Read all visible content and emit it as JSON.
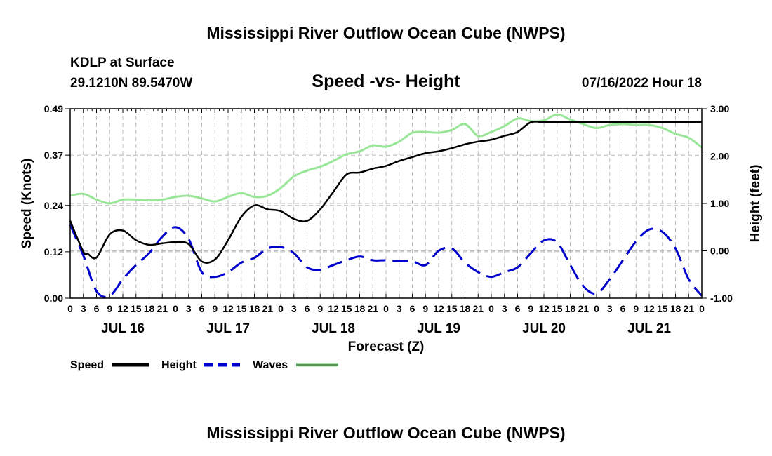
{
  "header": {
    "title": "Mississippi River Outflow Ocean Cube (NWPS)",
    "station": "KDLP at Surface",
    "coords": "29.1210N  89.5470W",
    "subtitle": "Speed -vs- Height",
    "date": "07/16/2022 Hour 18"
  },
  "footer": {
    "title": "Mississippi River Outflow Ocean Cube (NWPS)"
  },
  "chart_data": {
    "type": "line",
    "title": "Speed -vs- Height",
    "xlabel": "Forecast (Z)",
    "ylabel_left": "Speed (Knots)",
    "ylabel_right": "Height (feet)",
    "ylim_left": [
      0,
      0.49
    ],
    "ylim_right": [
      -1.0,
      3.0
    ],
    "yticks_left": [
      "0.49",
      "0.37",
      "0.24",
      "0.12",
      "0.00"
    ],
    "yticks_left_values": [
      0.49,
      0.37,
      0.24,
      0.12,
      0.0
    ],
    "yticks_right": [
      "3.00",
      "2.00",
      "1.00",
      "0.00",
      "-1.00"
    ],
    "yticks_right_values": [
      3.0,
      2.0,
      1.0,
      0.0,
      -1.0
    ],
    "x_range_hours": [
      0,
      144
    ],
    "x_tick_step_hours": 3,
    "x_tick_labels": [
      "0",
      "3",
      "6",
      "9",
      "12",
      "15",
      "18",
      "21",
      "0",
      "3",
      "6",
      "9",
      "12",
      "15",
      "18",
      "21",
      "0",
      "3",
      "6",
      "9",
      "12",
      "15",
      "18",
      "21",
      "0",
      "3",
      "6",
      "9",
      "12",
      "15",
      "18",
      "21",
      "0",
      "3",
      "6",
      "9",
      "12",
      "15",
      "18",
      "21",
      "0",
      "3",
      "6",
      "9",
      "12",
      "15",
      "18",
      "21",
      "0"
    ],
    "day_labels": [
      "JUL 16",
      "JUL 17",
      "JUL 18",
      "JUL 19",
      "JUL 20",
      "JUL 21"
    ],
    "day_label_hours": [
      12,
      36,
      60,
      84,
      108,
      132
    ],
    "grid": true,
    "legend": [
      "Speed",
      "Height",
      "Waves"
    ],
    "series": [
      {
        "name": "Speed",
        "axis": "left",
        "color": "#000000",
        "dash": "solid",
        "x": [
          0,
          3,
          4,
          6,
          9,
          12,
          15,
          18,
          21,
          24,
          27,
          30,
          33,
          36,
          39,
          42,
          45,
          48,
          51,
          54,
          57,
          60,
          63,
          66,
          69,
          72,
          75,
          78,
          81,
          84,
          87,
          90,
          93,
          96,
          99,
          102,
          105,
          108,
          110,
          144
        ],
        "values": [
          0.2,
          0.12,
          0.115,
          0.105,
          0.165,
          0.175,
          0.15,
          0.138,
          0.142,
          0.145,
          0.14,
          0.095,
          0.1,
          0.15,
          0.21,
          0.24,
          0.23,
          0.225,
          0.205,
          0.2,
          0.23,
          0.275,
          0.32,
          0.325,
          0.335,
          0.342,
          0.355,
          0.365,
          0.375,
          0.38,
          0.388,
          0.398,
          0.405,
          0.41,
          0.42,
          0.43,
          0.455,
          0.455,
          0.455,
          0.455
        ]
      },
      {
        "name": "Height",
        "axis": "right",
        "color": "#0000cc",
        "dash": "dashed",
        "x": [
          0,
          3,
          6,
          9,
          12,
          15,
          18,
          21,
          24,
          27,
          30,
          33,
          36,
          39,
          42,
          45,
          48,
          51,
          54,
          57,
          60,
          63,
          66,
          69,
          72,
          75,
          78,
          81,
          84,
          87,
          90,
          93,
          96,
          99,
          102,
          105,
          108,
          111,
          114,
          117,
          120,
          123,
          126,
          129,
          132,
          135,
          138,
          141,
          144
        ],
        "values": [
          0.55,
          -0.1,
          -0.85,
          -0.95,
          -0.6,
          -0.3,
          -0.05,
          0.3,
          0.5,
          0.25,
          -0.45,
          -0.55,
          -0.45,
          -0.25,
          -0.15,
          0.05,
          0.08,
          -0.05,
          -0.35,
          -0.4,
          -0.3,
          -0.2,
          -0.12,
          -0.2,
          -0.2,
          -0.22,
          -0.22,
          -0.3,
          0.0,
          0.05,
          -0.25,
          -0.45,
          -0.55,
          -0.45,
          -0.35,
          -0.05,
          0.22,
          0.18,
          -0.3,
          -0.75,
          -0.9,
          -0.6,
          -0.2,
          0.2,
          0.45,
          0.4,
          0.05,
          -0.6,
          -0.95
        ]
      },
      {
        "name": "Waves",
        "axis": "left",
        "color": "#99e699",
        "dash": "solid",
        "x": [
          0,
          3,
          6,
          9,
          12,
          15,
          18,
          21,
          24,
          27,
          30,
          33,
          36,
          39,
          42,
          45,
          48,
          51,
          54,
          57,
          60,
          63,
          66,
          69,
          72,
          75,
          78,
          81,
          84,
          87,
          90,
          93,
          96,
          99,
          102,
          105,
          108,
          111,
          114,
          117,
          120,
          123,
          126,
          129,
          132,
          135,
          138,
          141,
          144
        ],
        "values": [
          0.265,
          0.27,
          0.255,
          0.245,
          0.255,
          0.255,
          0.253,
          0.255,
          0.262,
          0.265,
          0.258,
          0.25,
          0.262,
          0.272,
          0.262,
          0.265,
          0.285,
          0.315,
          0.33,
          0.34,
          0.355,
          0.372,
          0.38,
          0.395,
          0.392,
          0.405,
          0.428,
          0.43,
          0.428,
          0.435,
          0.45,
          0.42,
          0.43,
          0.445,
          0.465,
          0.458,
          0.46,
          0.475,
          0.462,
          0.45,
          0.44,
          0.448,
          0.45,
          0.448,
          0.448,
          0.44,
          0.425,
          0.415,
          0.39
        ]
      }
    ]
  }
}
